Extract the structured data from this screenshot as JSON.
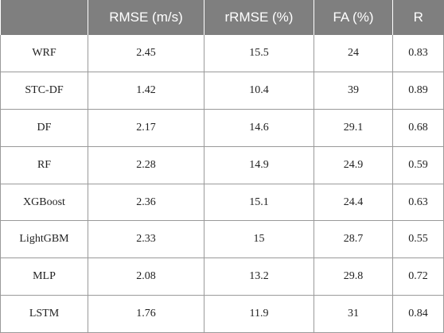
{
  "table": {
    "headers": [
      "",
      "RMSE (m/s)",
      "rRMSE (%)",
      "FA (%)",
      "R"
    ],
    "rows": [
      [
        "WRF",
        "2.45",
        "15.5",
        "24",
        "0.83"
      ],
      [
        "STC-DF",
        "1.42",
        "10.4",
        "39",
        "0.89"
      ],
      [
        "DF",
        "2.17",
        "14.6",
        "29.1",
        "0.68"
      ],
      [
        "RF",
        "2.28",
        "14.9",
        "24.9",
        "0.59"
      ],
      [
        "XGBoost",
        "2.36",
        "15.1",
        "24.4",
        "0.63"
      ],
      [
        "LightGBM",
        "2.33",
        "15",
        "28.7",
        "0.55"
      ],
      [
        "MLP",
        "2.08",
        "13.2",
        "29.8",
        "0.72"
      ],
      [
        "LSTM",
        "1.76",
        "11.9",
        "31",
        "0.84"
      ]
    ]
  }
}
